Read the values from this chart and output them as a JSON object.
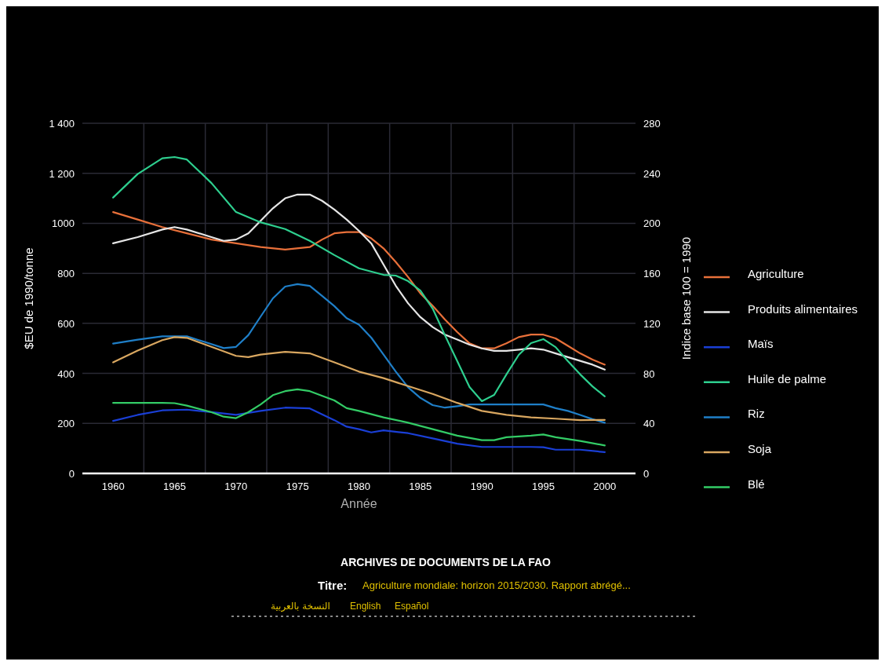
{
  "chart_data": {
    "type": "line",
    "xlabel": "Année",
    "ylabel": "$EU de 1990/tonne",
    "y2label": "Indice base 100 = 1990",
    "xlim": [
      1957.5,
      2002.5
    ],
    "xticks": [
      1960,
      1965,
      1970,
      1975,
      1980,
      1985,
      1990,
      1995,
      2000
    ],
    "ylim": [
      0,
      1400
    ],
    "yticks": [
      0,
      200,
      400,
      600,
      800,
      1000,
      {
        "value": 1200,
        "label": "1 200"
      },
      {
        "value": 1400,
        "label": "1 400"
      }
    ],
    "y2lim": [
      0,
      280
    ],
    "y2ticks": [
      0,
      40,
      80,
      120,
      160,
      200,
      240,
      280
    ],
    "grid": true,
    "legend": "right",
    "series": [
      {
        "name": "Agriculture",
        "color": "#e8703a",
        "axis": "y2",
        "x": [
          1960,
          1962,
          1964,
          1966,
          1968,
          1970,
          1972,
          1974,
          1976,
          1977,
          1978,
          1979,
          1980,
          1981,
          1982,
          1983,
          1984,
          1985,
          1986,
          1987,
          1988,
          1989,
          1990,
          1991,
          1992,
          1993,
          1994,
          1995,
          1996,
          1997,
          1998,
          1999,
          2000
        ],
        "values": [
          209,
          203,
          197,
          192,
          187,
          184,
          181,
          179,
          181,
          187,
          192,
          193,
          193,
          188,
          180,
          169,
          157,
          144,
          134,
          123,
          113,
          104,
          100,
          100,
          104,
          109,
          111,
          111,
          108,
          102,
          96,
          91,
          87
        ]
      },
      {
        "name": "Produits alimentaires",
        "color": "#e6e6e6",
        "axis": "y2",
        "x": [
          1960,
          1962,
          1964,
          1965,
          1966,
          1968,
          1969,
          1970,
          1971,
          1972,
          1973,
          1974,
          1975,
          1976,
          1977,
          1978,
          1979,
          1980,
          1981,
          1982,
          1983,
          1984,
          1985,
          1986,
          1987,
          1988,
          1989,
          1990,
          1991,
          1992,
          1993,
          1994,
          1995,
          1996,
          1997,
          1998,
          1999,
          2000
        ],
        "values": [
          184,
          189,
          195,
          197,
          195,
          189,
          186,
          187,
          192,
          202,
          212,
          220,
          223,
          223,
          218,
          211,
          203,
          194,
          184,
          167,
          150,
          136,
          125,
          117,
          111,
          107,
          103,
          100,
          98,
          98,
          99,
          100,
          99,
          96,
          93,
          90,
          87,
          83
        ]
      },
      {
        "name": "Maïs",
        "color": "#1a3fd6",
        "x": [
          1960,
          1962,
          1964,
          1966,
          1968,
          1970,
          1972,
          1974,
          1976,
          1978,
          1979,
          1980,
          1981,
          1982,
          1984,
          1986,
          1988,
          1990,
          1992,
          1994,
          1995,
          1996,
          1998,
          2000
        ],
        "values": [
          210,
          234,
          252,
          255,
          245,
          234,
          250,
          263,
          260,
          213,
          187,
          177,
          164,
          172,
          161,
          140,
          119,
          106,
          106,
          106,
          105,
          95,
          95,
          85
        ]
      },
      {
        "name": "Huile de palme",
        "color": "#2ecf8f",
        "x": [
          1960,
          1962,
          1964,
          1965,
          1966,
          1968,
          1970,
          1972,
          1974,
          1976,
          1978,
          1980,
          1982,
          1983,
          1984,
          1985,
          1986,
          1987,
          1988,
          1989,
          1990,
          1991,
          1992,
          1993,
          1994,
          1995,
          1996,
          1997,
          1998,
          1999,
          2000
        ],
        "values": [
          1103,
          1197,
          1260,
          1265,
          1255,
          1161,
          1045,
          1004,
          977,
          930,
          873,
          820,
          794,
          791,
          769,
          731,
          659,
          552,
          449,
          345,
          289,
          314,
          396,
          474,
          521,
          537,
          505,
          449,
          396,
          348,
          308
        ]
      },
      {
        "name": "Riz",
        "color": "#1f7fc8",
        "x": [
          1960,
          1962,
          1964,
          1966,
          1968,
          1969,
          1970,
          1971,
          1972,
          1973,
          1974,
          1975,
          1976,
          1977,
          1978,
          1979,
          1980,
          1981,
          1982,
          1983,
          1984,
          1985,
          1986,
          1987,
          1988,
          1989,
          1990,
          1992,
          1994,
          1995,
          1996,
          1997,
          1998,
          1999,
          2000
        ],
        "values": [
          519,
          535,
          548,
          548,
          517,
          501,
          506,
          553,
          627,
          700,
          747,
          757,
          750,
          710,
          669,
          621,
          595,
          543,
          475,
          407,
          344,
          302,
          273,
          263,
          269,
          276,
          276,
          276,
          276,
          276,
          261,
          250,
          234,
          217,
          203
        ]
      },
      {
        "name": "Soja",
        "color": "#d9a760",
        "x": [
          1960,
          1962,
          1964,
          1965,
          1966,
          1968,
          1970,
          1971,
          1972,
          1974,
          1976,
          1978,
          1980,
          1982,
          1984,
          1986,
          1988,
          1990,
          1992,
          1994,
          1996,
          1998,
          2000
        ],
        "values": [
          444,
          491,
          533,
          545,
          542,
          506,
          470,
          465,
          475,
          486,
          480,
          444,
          407,
          381,
          349,
          318,
          282,
          250,
          234,
          224,
          219,
          213,
          214
        ]
      },
      {
        "name": "Blé",
        "color": "#33cc66",
        "x": [
          1960,
          1962,
          1964,
          1965,
          1966,
          1968,
          1969,
          1970,
          1971,
          1972,
          1973,
          1974,
          1975,
          1976,
          1978,
          1979,
          1980,
          1982,
          1984,
          1986,
          1988,
          1990,
          1991,
          1992,
          1994,
          1995,
          1996,
          1998,
          2000
        ],
        "values": [
          282,
          282,
          282,
          281,
          271,
          245,
          227,
          221,
          245,
          276,
          313,
          329,
          336,
          329,
          292,
          261,
          250,
          224,
          203,
          177,
          151,
          133,
          133,
          145,
          151,
          156,
          145,
          130,
          112
        ]
      }
    ],
    "annotations": [
      "ARCHIVES DE DOCUMENTS DE LA FAO",
      "Titre:",
      "Agriculture mondiale: horizon 2015/2030. Rapport abrégé...",
      "النسخة بالعربية",
      "English",
      "Español"
    ]
  }
}
